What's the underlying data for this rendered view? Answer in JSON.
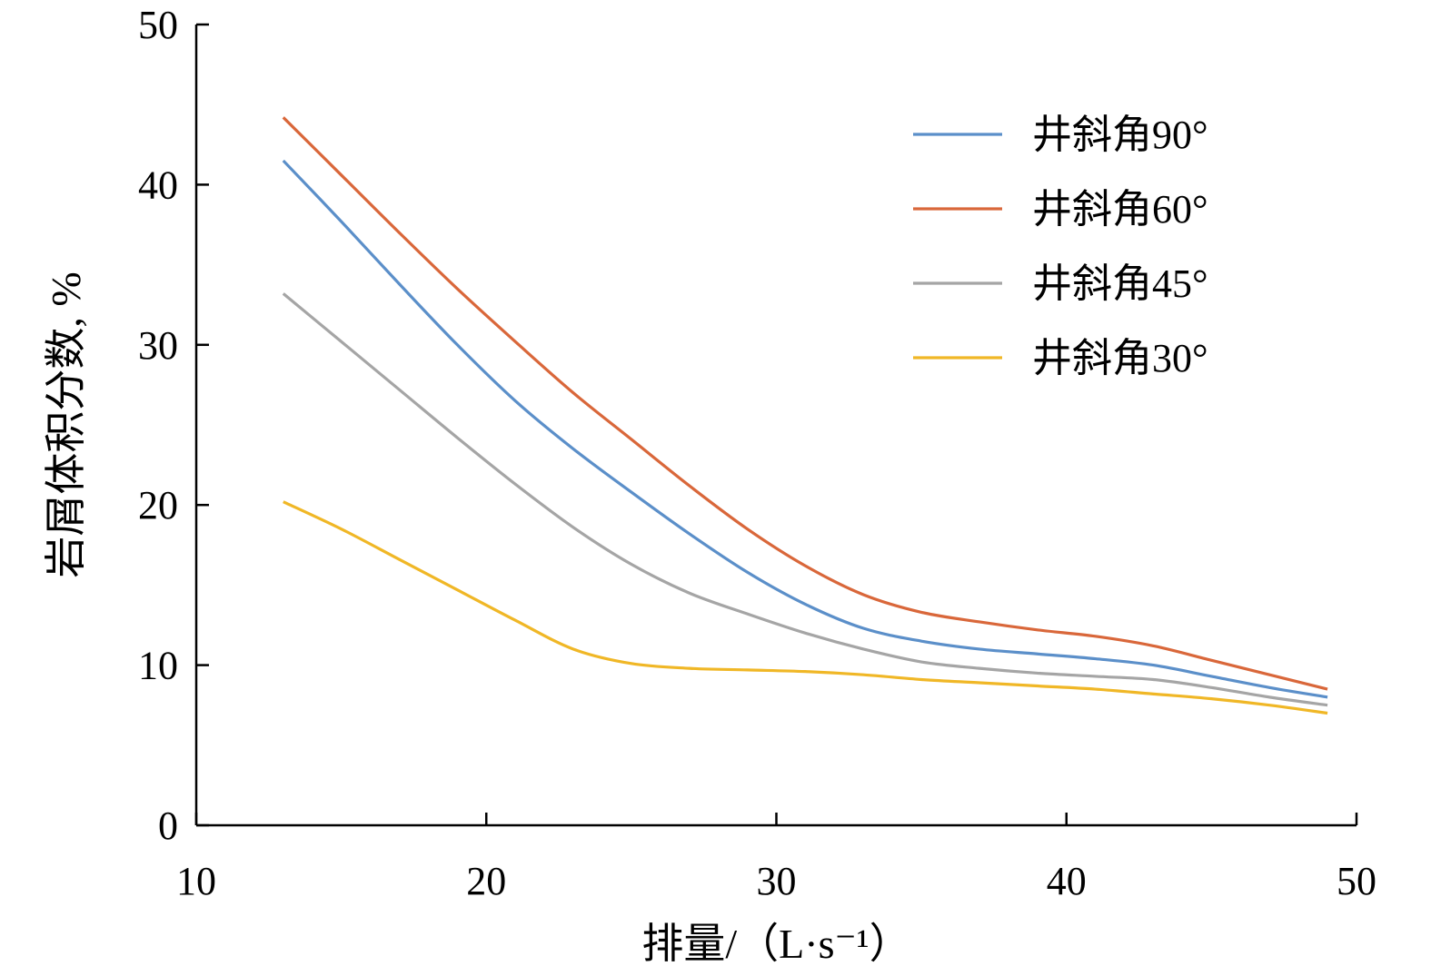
{
  "chart_data": {
    "type": "line",
    "xlabel": "排量/（L·s⁻¹）",
    "ylabel": "岩屑体积分数, %",
    "xlim": [
      10,
      50
    ],
    "ylim": [
      0,
      50
    ],
    "x_ticks": [
      "10",
      "20",
      "30",
      "40",
      "50"
    ],
    "y_ticks": [
      "0",
      "10",
      "20",
      "30",
      "40",
      "50"
    ],
    "grid": false,
    "legend_position": "top-right",
    "x": [
      13,
      15,
      17,
      19,
      21,
      23,
      25,
      27,
      29,
      31,
      33,
      35,
      37,
      39,
      41,
      43,
      45,
      47,
      49
    ],
    "series": [
      {
        "name": "井斜角90°",
        "color": "#5b8fc9",
        "values": [
          41.5,
          37.7,
          33.8,
          30.0,
          26.5,
          23.5,
          20.8,
          18.2,
          15.8,
          13.8,
          12.3,
          11.5,
          11.0,
          10.7,
          10.4,
          10.0,
          9.3,
          8.6,
          8.0
        ]
      },
      {
        "name": "井斜角60°",
        "color": "#d9673a",
        "values": [
          44.2,
          40.6,
          37.0,
          33.5,
          30.2,
          27.0,
          24.1,
          21.2,
          18.5,
          16.2,
          14.4,
          13.3,
          12.7,
          12.2,
          11.8,
          11.2,
          10.3,
          9.4,
          8.5
        ]
      },
      {
        "name": "井斜角45°",
        "color": "#a5a5a5",
        "values": [
          33.2,
          30.2,
          27.2,
          24.2,
          21.3,
          18.6,
          16.3,
          14.5,
          13.2,
          12.0,
          11.0,
          10.2,
          9.8,
          9.5,
          9.3,
          9.1,
          8.6,
          8.0,
          7.5
        ]
      },
      {
        "name": "井斜角30°",
        "color": "#f0b726",
        "values": [
          20.2,
          18.5,
          16.6,
          14.7,
          12.8,
          11.0,
          10.1,
          9.8,
          9.7,
          9.6,
          9.4,
          9.1,
          8.9,
          8.7,
          8.5,
          8.2,
          7.9,
          7.5,
          7.0
        ]
      }
    ]
  }
}
